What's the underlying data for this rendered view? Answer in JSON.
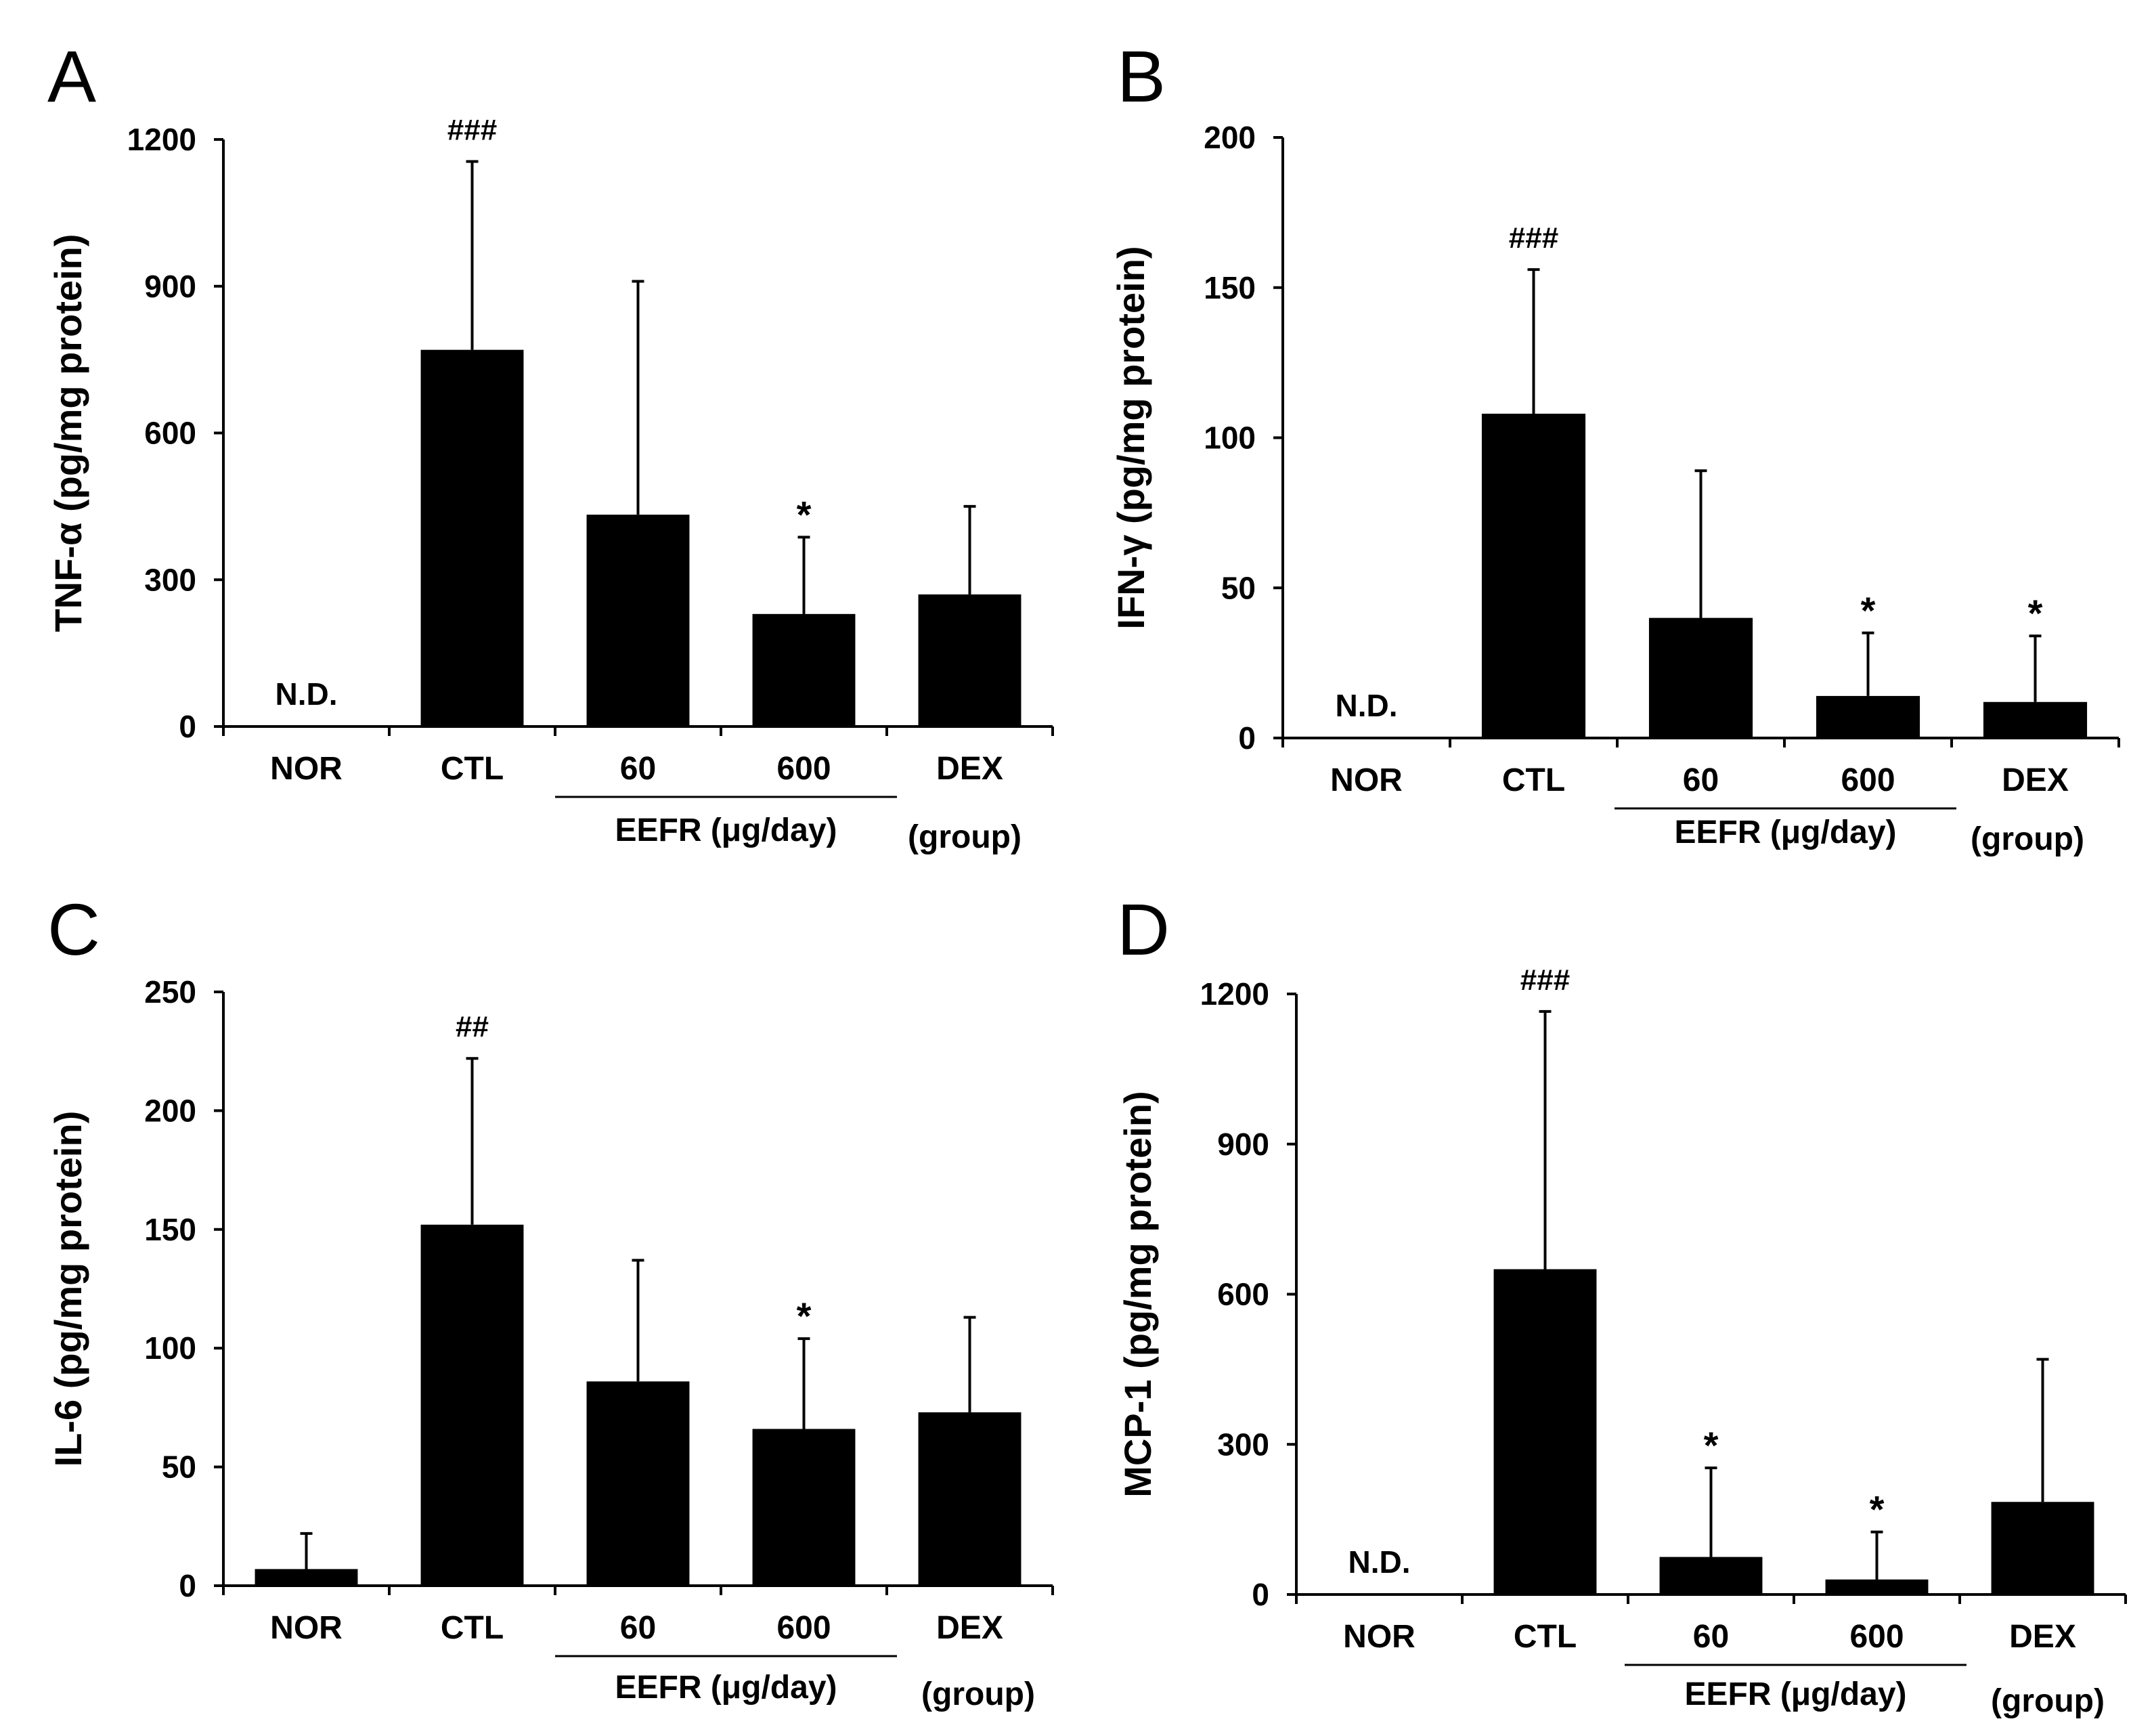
{
  "colors": {
    "bar": "#000000",
    "axis": "#000000",
    "background": "#ffffff"
  },
  "chart_data": [
    {
      "type": "bar",
      "panel_label": "A",
      "ylabel": "TNF-α (pg/mg protein)",
      "ylim": [
        0,
        1200
      ],
      "yticks": [
        0,
        300,
        600,
        900,
        1200
      ],
      "categories": [
        "NOR",
        "CTL",
        "60",
        "600",
        "DEX"
      ],
      "values": [
        0,
        770,
        433,
        230,
        270
      ],
      "errors": [
        0,
        385,
        477,
        157,
        180
      ],
      "annotations": [
        "N.D.",
        "###",
        "",
        "*",
        ""
      ],
      "group_label": "EEFR (μg/day)",
      "group_members": [
        "60",
        "600"
      ],
      "xlabel": "(group)"
    },
    {
      "type": "bar",
      "panel_label": "B",
      "ylabel": "IFN-γ (pg/mg protein)",
      "ylim": [
        0,
        200
      ],
      "yticks": [
        0,
        50,
        100,
        150,
        200
      ],
      "categories": [
        "NOR",
        "CTL",
        "60",
        "600",
        "DEX"
      ],
      "values": [
        0,
        108,
        40,
        14,
        12
      ],
      "errors": [
        0,
        48,
        49,
        21,
        22
      ],
      "annotations": [
        "N.D.",
        "###",
        "",
        "*",
        "*"
      ],
      "group_label": "EEFR (μg/day)",
      "group_members": [
        "60",
        "600"
      ],
      "xlabel": "(group)"
    },
    {
      "type": "bar",
      "panel_label": "C",
      "ylabel": "IL-6 (pg/mg protein)",
      "ylim": [
        0,
        250
      ],
      "yticks": [
        0,
        50,
        100,
        150,
        200,
        250
      ],
      "categories": [
        "NOR",
        "CTL",
        "60",
        "600",
        "DEX"
      ],
      "values": [
        7,
        152,
        86,
        66,
        73
      ],
      "errors": [
        15,
        70,
        51,
        38,
        40
      ],
      "annotations": [
        "",
        "##",
        "",
        "*",
        ""
      ],
      "group_label": "EEFR (μg/day)",
      "group_members": [
        "60",
        "600"
      ],
      "xlabel": "(group)"
    },
    {
      "type": "bar",
      "panel_label": "D",
      "ylabel": "MCP-1 (pg/mg protein)",
      "ylim": [
        0,
        1200
      ],
      "yticks": [
        0,
        300,
        600,
        900,
        1200
      ],
      "categories": [
        "NOR",
        "CTL",
        "60",
        "600",
        "DEX"
      ],
      "values": [
        0,
        650,
        75,
        30,
        185
      ],
      "errors": [
        0,
        515,
        178,
        95,
        285
      ],
      "annotations": [
        "N.D.",
        "###",
        "*",
        "*",
        ""
      ],
      "group_label": "EEFR (μg/day)",
      "group_members": [
        "60",
        "600"
      ],
      "xlabel": "(group)"
    }
  ]
}
